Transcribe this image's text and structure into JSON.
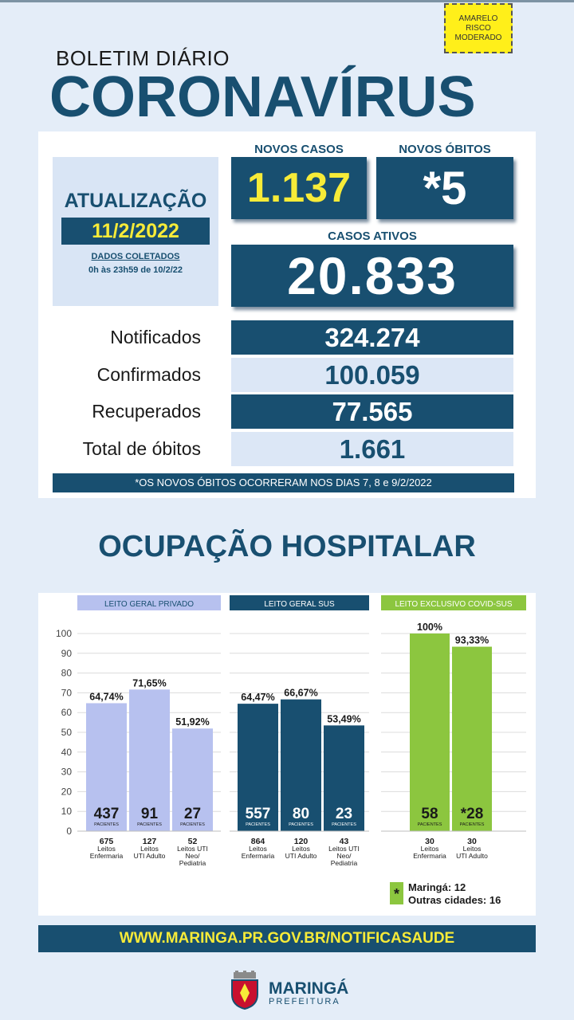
{
  "risk_badge": [
    "AMARELO",
    "RISCO",
    "MODERADO"
  ],
  "header": {
    "subtitle": "BOLETIM DIÁRIO",
    "title": "CORONAVÍRUS"
  },
  "update": {
    "title": "ATUALIZAÇÃO",
    "date": "11/2/2022",
    "collected_label": "DADOS COLETADOS",
    "collected_range": "0h às 23h59 de 10/2/22"
  },
  "headline": {
    "new_cases_label": "NOVOS CASOS",
    "new_cases": "1.137",
    "new_deaths_label": "NOVOS ÓBITOS",
    "new_deaths": "*5",
    "active_label": "CASOS ATIVOS",
    "active": "20.833"
  },
  "totals": [
    {
      "label": "Notificados",
      "value": "324.274"
    },
    {
      "label": "Confirmados",
      "value": "100.059"
    },
    {
      "label": "Recuperados",
      "value": "77.565"
    },
    {
      "label": "Total de óbitos",
      "value": "1.661"
    }
  ],
  "note": "*OS NOVOS  ÓBITOS OCORRERAM NOS DIAS 7, 8 e 9/2/2022",
  "section_title": "OCUPAÇÃO HOSPITALAR",
  "colors": {
    "dark": "#184f70",
    "lavender": "#b7c1ef",
    "green": "#8cc63f",
    "yellow": "#f7eb38"
  },
  "chart_data": {
    "type": "bar",
    "ylim": [
      0,
      100
    ],
    "yticks": [
      0,
      10,
      20,
      30,
      40,
      50,
      60,
      70,
      80,
      90,
      100
    ],
    "groups": [
      {
        "title": "LEITO GERAL PRIVADO",
        "color": "#b7c1ef",
        "bars": [
          {
            "value": 64.74,
            "value_label": "64,74%",
            "patients": "437",
            "patients_label": "PACIENTES",
            "beds": "675",
            "category": [
              "Leitos",
              "Enfermaria"
            ]
          },
          {
            "value": 71.65,
            "value_label": "71,65%",
            "patients": "91",
            "patients_label": "PACIENTES",
            "beds": "127",
            "category": [
              "Leitos",
              "UTI Adulto"
            ]
          },
          {
            "value": 51.92,
            "value_label": "51,92%",
            "patients": "27",
            "patients_label": "PACIENTES",
            "beds": "52",
            "category": [
              "Leitos UTI",
              "Neo/",
              "Pediatria"
            ]
          }
        ]
      },
      {
        "title": "LEITO GERAL SUS",
        "color": "#184f70",
        "bars": [
          {
            "value": 64.47,
            "value_label": "64,47%",
            "patients": "557",
            "patients_label": "PACIENTES",
            "beds": "864",
            "category": [
              "Leitos",
              "Enfermaria"
            ]
          },
          {
            "value": 66.67,
            "value_label": "66,67%",
            "patients": "80",
            "patients_label": "PACIENTES",
            "beds": "120",
            "category": [
              "Leitos",
              "UTI Adulto"
            ]
          },
          {
            "value": 53.49,
            "value_label": "53,49%",
            "patients": "23",
            "patients_label": "PACIENTES",
            "beds": "43",
            "category": [
              "Leitos UTI",
              "Neo/",
              "Pediatria"
            ]
          }
        ]
      },
      {
        "title": "LEITO EXCLUSIVO COVID-SUS",
        "color": "#8cc63f",
        "bars": [
          {
            "value": 100,
            "value_label": "100%",
            "patients": "58",
            "patients_label": "PACIENTES",
            "beds": "30",
            "category": [
              "Leitos",
              "Enfermaria"
            ]
          },
          {
            "value": 93.33,
            "value_label": "93,33%",
            "patients": "*28",
            "patients_label": "PACIENTES",
            "beds": "30",
            "category": [
              "Leitos",
              "UTI Adulto"
            ]
          }
        ]
      }
    ],
    "footnote": {
      "marker": "*",
      "lines": [
        "Maringá: 12",
        "Outras cidades: 16"
      ]
    }
  },
  "footer_url": "WWW.MARINGA.PR.GOV.BR/NOTIFICASAUDE",
  "logo": {
    "name": "MARINGÁ",
    "subtitle": "PREFEITURA"
  }
}
